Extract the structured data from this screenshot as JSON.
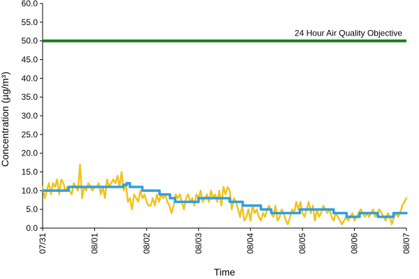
{
  "chart_data": {
    "type": "line",
    "xlabel": "Time",
    "ylabel": "Concentration (µg/m³)",
    "ylim": [
      0,
      60
    ],
    "yticks": [
      "0.0",
      "5.0",
      "10.0",
      "15.0",
      "20.0",
      "25.0",
      "30.0",
      "35.0",
      "40.0",
      "45.0",
      "50.0",
      "55.0",
      "60.0"
    ],
    "xticks": [
      "07/31",
      "08/01",
      "08/02",
      "08/03",
      "08/04",
      "08/05",
      "08/06",
      "08/07"
    ],
    "grid": false,
    "legend": "none",
    "objective": {
      "label": "24 Hour Air Quality Objective",
      "value": 50,
      "color": "#1a7a1a"
    },
    "series": [
      {
        "role": "hourly",
        "color": "#f2c21b",
        "points": [
          [
            0,
            11
          ],
          [
            0.04,
            8
          ],
          [
            0.08,
            10
          ],
          [
            0.12,
            12
          ],
          [
            0.16,
            9
          ],
          [
            0.2,
            12
          ],
          [
            0.24,
            11
          ],
          [
            0.28,
            13
          ],
          [
            0.32,
            9
          ],
          [
            0.36,
            13
          ],
          [
            0.4,
            12
          ],
          [
            0.44,
            10
          ],
          [
            0.48,
            11
          ],
          [
            0.52,
            10
          ],
          [
            0.56,
            9
          ],
          [
            0.6,
            12
          ],
          [
            0.64,
            11
          ],
          [
            0.68,
            10
          ],
          [
            0.72,
            17
          ],
          [
            0.76,
            8
          ],
          [
            0.8,
            11
          ],
          [
            0.84,
            10
          ],
          [
            0.88,
            12
          ],
          [
            0.92,
            11
          ],
          [
            0.96,
            10
          ],
          [
            1.0,
            11
          ],
          [
            1.04,
            11
          ],
          [
            1.08,
            12
          ],
          [
            1.12,
            9
          ],
          [
            1.16,
            11
          ],
          [
            1.2,
            8
          ],
          [
            1.24,
            13
          ],
          [
            1.28,
            11
          ],
          [
            1.32,
            12
          ],
          [
            1.36,
            13
          ],
          [
            1.4,
            12
          ],
          [
            1.44,
            14
          ],
          [
            1.48,
            11
          ],
          [
            1.52,
            15
          ],
          [
            1.56,
            10
          ],
          [
            1.6,
            12
          ],
          [
            1.64,
            7
          ],
          [
            1.68,
            8
          ],
          [
            1.72,
            5
          ],
          [
            1.76,
            9
          ],
          [
            1.8,
            8
          ],
          [
            1.84,
            7
          ],
          [
            1.88,
            10
          ],
          [
            1.92,
            8
          ],
          [
            1.96,
            9
          ],
          [
            2.0,
            7
          ],
          [
            2.04,
            6
          ],
          [
            2.08,
            6
          ],
          [
            2.12,
            8
          ],
          [
            2.16,
            6
          ],
          [
            2.2,
            9
          ],
          [
            2.24,
            7
          ],
          [
            2.28,
            9
          ],
          [
            2.32,
            8
          ],
          [
            2.36,
            9
          ],
          [
            2.4,
            7
          ],
          [
            2.44,
            6
          ],
          [
            2.48,
            4
          ],
          [
            2.52,
            6
          ],
          [
            2.56,
            9
          ],
          [
            2.6,
            8
          ],
          [
            2.64,
            9
          ],
          [
            2.68,
            7
          ],
          [
            2.72,
            5
          ],
          [
            2.76,
            8
          ],
          [
            2.8,
            9
          ],
          [
            2.84,
            7
          ],
          [
            2.88,
            8
          ],
          [
            2.92,
            6
          ],
          [
            2.96,
            9
          ],
          [
            3.0,
            8
          ],
          [
            3.04,
            10
          ],
          [
            3.08,
            7
          ],
          [
            3.12,
            8
          ],
          [
            3.16,
            9
          ],
          [
            3.2,
            7
          ],
          [
            3.24,
            10
          ],
          [
            3.28,
            8
          ],
          [
            3.32,
            9
          ],
          [
            3.36,
            7
          ],
          [
            3.4,
            10
          ],
          [
            3.44,
            6
          ],
          [
            3.48,
            11
          ],
          [
            3.52,
            9
          ],
          [
            3.56,
            11
          ],
          [
            3.6,
            10
          ],
          [
            3.64,
            5
          ],
          [
            3.68,
            8
          ],
          [
            3.72,
            7
          ],
          [
            3.76,
            5
          ],
          [
            3.8,
            3
          ],
          [
            3.84,
            6
          ],
          [
            3.88,
            2
          ],
          [
            3.92,
            3
          ],
          [
            3.96,
            5
          ],
          [
            4.0,
            2
          ],
          [
            4.04,
            6
          ],
          [
            4.08,
            4
          ],
          [
            4.12,
            5
          ],
          [
            4.16,
            3
          ],
          [
            4.2,
            2
          ],
          [
            4.24,
            4
          ],
          [
            4.28,
            3
          ],
          [
            4.32,
            5
          ],
          [
            4.36,
            6
          ],
          [
            4.4,
            4
          ],
          [
            4.44,
            3
          ],
          [
            4.48,
            6
          ],
          [
            4.52,
            2
          ],
          [
            4.56,
            3
          ],
          [
            4.6,
            5
          ],
          [
            4.64,
            4
          ],
          [
            4.68,
            2
          ],
          [
            4.72,
            1
          ],
          [
            4.76,
            3
          ],
          [
            4.8,
            5
          ],
          [
            4.84,
            4
          ],
          [
            4.88,
            7
          ],
          [
            4.92,
            5
          ],
          [
            4.96,
            7
          ],
          [
            5.0,
            4
          ],
          [
            5.04,
            3
          ],
          [
            5.08,
            5
          ],
          [
            5.12,
            7
          ],
          [
            5.16,
            4
          ],
          [
            5.2,
            6
          ],
          [
            5.24,
            2
          ],
          [
            5.28,
            5
          ],
          [
            5.32,
            3
          ],
          [
            5.36,
            4
          ],
          [
            5.4,
            6
          ],
          [
            5.44,
            5
          ],
          [
            5.48,
            4
          ],
          [
            5.52,
            5
          ],
          [
            5.56,
            3
          ],
          [
            5.6,
            2
          ],
          [
            5.64,
            4
          ],
          [
            5.68,
            3
          ],
          [
            5.72,
            2
          ],
          [
            5.76,
            1
          ],
          [
            5.8,
            2
          ],
          [
            5.84,
            3
          ],
          [
            5.88,
            2
          ],
          [
            5.92,
            3
          ],
          [
            5.96,
            4
          ],
          [
            6.0,
            2
          ],
          [
            6.04,
            3
          ],
          [
            6.08,
            4
          ],
          [
            6.12,
            5
          ],
          [
            6.16,
            4
          ],
          [
            6.2,
            3
          ],
          [
            6.24,
            4
          ],
          [
            6.28,
            3
          ],
          [
            6.32,
            4
          ],
          [
            6.36,
            5
          ],
          [
            6.4,
            3
          ],
          [
            6.44,
            4
          ],
          [
            6.48,
            5
          ],
          [
            6.52,
            4
          ],
          [
            6.56,
            3
          ],
          [
            6.6,
            2
          ],
          [
            6.64,
            4
          ],
          [
            6.68,
            3
          ],
          [
            6.72,
            1
          ],
          [
            6.76,
            3
          ],
          [
            6.8,
            4
          ],
          [
            6.84,
            3
          ],
          [
            6.88,
            4
          ],
          [
            6.92,
            6
          ],
          [
            6.96,
            7
          ],
          [
            7.0,
            8
          ]
        ]
      },
      {
        "role": "rolling_average",
        "color": "#2e9fe0",
        "points": [
          [
            0,
            10
          ],
          [
            0.5,
            10
          ],
          [
            0.5,
            11
          ],
          [
            1.0,
            11
          ],
          [
            1.55,
            11
          ],
          [
            1.55,
            11.5
          ],
          [
            1.62,
            11.5
          ],
          [
            1.62,
            12
          ],
          [
            1.68,
            12
          ],
          [
            1.68,
            11
          ],
          [
            1.92,
            11
          ],
          [
            1.92,
            10
          ],
          [
            2.25,
            10
          ],
          [
            2.25,
            9
          ],
          [
            2.45,
            9
          ],
          [
            2.45,
            8
          ],
          [
            2.55,
            8
          ],
          [
            2.55,
            7
          ],
          [
            3.0,
            7
          ],
          [
            3.0,
            8
          ],
          [
            3.6,
            8
          ],
          [
            3.6,
            7
          ],
          [
            3.85,
            7
          ],
          [
            3.85,
            6
          ],
          [
            4.2,
            6
          ],
          [
            4.2,
            5
          ],
          [
            4.4,
            5
          ],
          [
            4.4,
            4
          ],
          [
            4.95,
            4
          ],
          [
            4.95,
            5
          ],
          [
            5.6,
            5
          ],
          [
            5.6,
            4
          ],
          [
            5.85,
            4
          ],
          [
            5.85,
            3
          ],
          [
            6.1,
            3
          ],
          [
            6.1,
            4
          ],
          [
            6.45,
            4
          ],
          [
            6.45,
            3
          ],
          [
            6.75,
            3
          ],
          [
            6.75,
            4
          ],
          [
            7.0,
            4
          ]
        ]
      }
    ]
  }
}
